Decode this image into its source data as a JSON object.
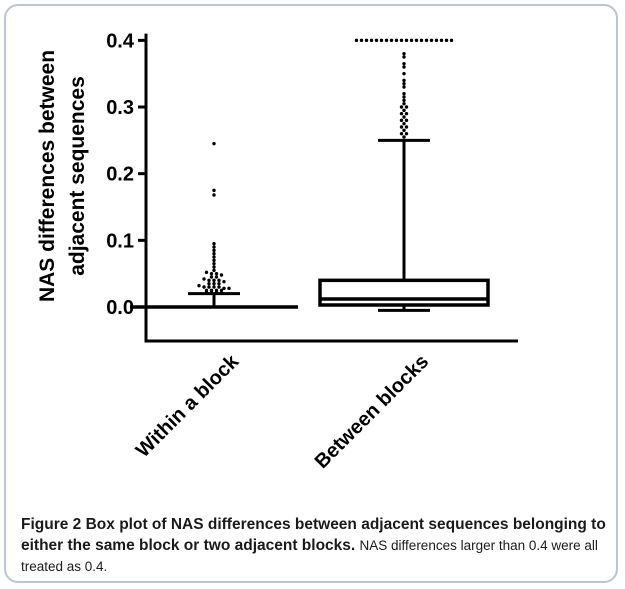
{
  "chart_data": {
    "type": "box",
    "ylabel_line1": "NAS differences between",
    "ylabel_line2": "adjacent sequences",
    "ylim": [
      -0.05,
      0.41
    ],
    "yticks": [
      "0.0",
      "0.1",
      "0.2",
      "0.3",
      "0.4"
    ],
    "categories": [
      "Within a block",
      "Between blocks"
    ],
    "boxes": [
      {
        "name": "Within a block",
        "min": 0.0,
        "q1": 0.0,
        "median": 0.0,
        "q3": 0.0,
        "whisker_high": 0.02,
        "outliers": [
          0.245,
          0.175,
          0.168,
          0.095,
          0.09,
          0.085,
          0.08,
          0.075,
          0.07,
          0.065,
          0.06,
          0.055,
          0.052,
          0.05,
          0.05,
          0.048,
          0.045,
          0.045,
          0.042,
          0.04,
          0.04,
          0.04,
          0.038,
          0.035,
          0.035,
          0.035,
          0.032,
          0.03,
          0.03,
          0.03,
          0.03,
          0.028,
          0.028,
          0.025,
          0.025,
          0.025,
          0.025,
          0.022,
          0.022,
          0.022,
          0.021
        ]
      },
      {
        "name": "Between blocks",
        "min": -0.005,
        "q1": 0.003,
        "median": 0.012,
        "q3": 0.04,
        "whisker_high": 0.25,
        "outliers": [
          0.4,
          0.4,
          0.4,
          0.4,
          0.4,
          0.4,
          0.4,
          0.4,
          0.4,
          0.4,
          0.4,
          0.4,
          0.4,
          0.4,
          0.4,
          0.4,
          0.4,
          0.4,
          0.4,
          0.4,
          0.38,
          0.375,
          0.365,
          0.36,
          0.35,
          0.34,
          0.335,
          0.33,
          0.32,
          0.315,
          0.31,
          0.305,
          0.3,
          0.3,
          0.295,
          0.29,
          0.29,
          0.285,
          0.28,
          0.28,
          0.275,
          0.27,
          0.27,
          0.265,
          0.26,
          0.26,
          0.255
        ]
      }
    ]
  },
  "caption": {
    "label": "Figure 2",
    "title": "Box plot of NAS differences between adjacent sequences belonging to either the same block or two adjacent blocks.",
    "note": "NAS differences larger than 0.4 were all treated as 0.4."
  },
  "colors": {
    "ink": "#000000",
    "frame": "#b8c6d6",
    "caption_text": "#1a1a1a"
  }
}
